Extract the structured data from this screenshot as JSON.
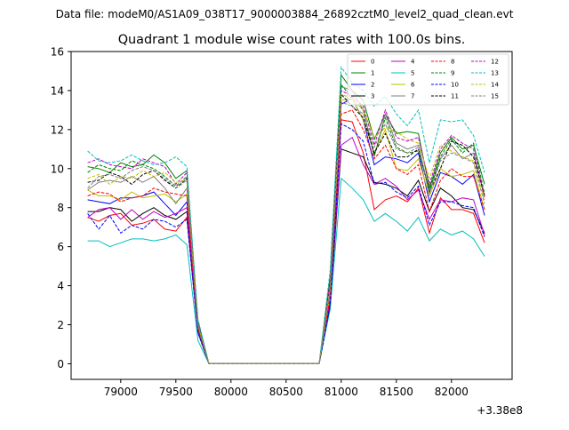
{
  "figure": {
    "suptitle": "Data file: modeM0/AS1A09_038T17_9000003884_26892cztM0_level2_quad_clean.evt"
  },
  "chart_data": {
    "type": "line",
    "title": "Quadrant 1 module wise count rates with 100.0s bins.",
    "xlabel": "",
    "ylabel": "",
    "x_offset_label": "+3.38e8",
    "xlim": [
      78550,
      82550
    ],
    "ylim": [
      -0.8,
      16
    ],
    "xticks": [
      79000,
      79500,
      80000,
      80500,
      81000,
      81500,
      82000
    ],
    "yticks": [
      0,
      2,
      4,
      6,
      8,
      10,
      12,
      14,
      16
    ],
    "grid": false,
    "legend_position": "top-right",
    "x": [
      78700,
      78800,
      78900,
      79000,
      79100,
      79200,
      79300,
      79400,
      79500,
      79600,
      79700,
      79800,
      79900,
      80000,
      80100,
      80200,
      80300,
      80400,
      80500,
      80600,
      80700,
      80800,
      80900,
      81000,
      81100,
      81200,
      81300,
      81400,
      81500,
      81600,
      81700,
      81800,
      81900,
      82000,
      82100,
      82200,
      82300
    ],
    "series": [
      {
        "name": "0",
        "color": "#ff0000",
        "dashed": false,
        "values": [
          7.5,
          7.3,
          7.6,
          7.7,
          7.1,
          7.2,
          7.4,
          6.9,
          6.8,
          7.5,
          1.6,
          0,
          0,
          0,
          0,
          0,
          0,
          0,
          0,
          0,
          0,
          0,
          3.2,
          12.5,
          12.4,
          10.8,
          7.9,
          8.4,
          8.6,
          8.3,
          9.0,
          6.7,
          8.5,
          7.9,
          7.9,
          7.7,
          6.2
        ]
      },
      {
        "name": "1",
        "color": "#008000",
        "dashed": false,
        "values": [
          10.1,
          10.0,
          9.8,
          10.3,
          10.1,
          10.2,
          10.7,
          10.3,
          9.5,
          9.9,
          2.2,
          0,
          0,
          0,
          0,
          0,
          0,
          0,
          0,
          0,
          0,
          0,
          4.5,
          14.8,
          14.0,
          13.5,
          11.5,
          12.8,
          11.8,
          11.9,
          11.8,
          9.0,
          10.8,
          11.6,
          11.0,
          11.2,
          9.2
        ]
      },
      {
        "name": "2",
        "color": "#0000ff",
        "dashed": false,
        "values": [
          8.4,
          8.3,
          8.2,
          8.5,
          8.5,
          8.6,
          8.8,
          8.2,
          7.6,
          8.3,
          1.9,
          0,
          0,
          0,
          0,
          0,
          0,
          0,
          0,
          0,
          0,
          0,
          3.8,
          13.3,
          13.6,
          12.5,
          10.2,
          10.6,
          10.5,
          10.3,
          10.8,
          8.3,
          9.8,
          9.6,
          9.2,
          9.7,
          7.6
        ]
      },
      {
        "name": "3",
        "color": "#000000",
        "dashed": false,
        "values": [
          7.8,
          7.8,
          8.0,
          7.9,
          7.3,
          7.7,
          8.0,
          7.6,
          7.4,
          7.8,
          1.7,
          0,
          0,
          0,
          0,
          0,
          0,
          0,
          0,
          0,
          0,
          0,
          3.0,
          11.0,
          10.8,
          10.6,
          9.3,
          9.2,
          9.0,
          8.6,
          9.4,
          7.8,
          9.0,
          8.6,
          8.0,
          7.9,
          6.7
        ]
      },
      {
        "name": "4",
        "color": "#c000c0",
        "dashed": false,
        "values": [
          7.5,
          7.9,
          8.0,
          7.4,
          7.9,
          7.4,
          7.8,
          7.5,
          7.7,
          8.0,
          1.8,
          0,
          0,
          0,
          0,
          0,
          0,
          0,
          0,
          0,
          0,
          0,
          3.3,
          11.2,
          11.6,
          10.2,
          9.2,
          9.5,
          9.1,
          8.4,
          8.9,
          7.4,
          8.4,
          8.3,
          8.5,
          8.4,
          6.6
        ]
      },
      {
        "name": "5",
        "color": "#00bfbf",
        "dashed": false,
        "values": [
          6.3,
          6.3,
          6.0,
          6.2,
          6.4,
          6.4,
          6.3,
          6.4,
          6.6,
          6.1,
          1.2,
          0,
          0,
          0,
          0,
          0,
          0,
          0,
          0,
          0,
          0,
          0,
          2.8,
          9.5,
          9.0,
          8.4,
          7.3,
          7.7,
          7.3,
          6.8,
          7.5,
          6.3,
          6.9,
          6.6,
          6.8,
          6.4,
          5.5
        ]
      },
      {
        "name": "6",
        "color": "#bfbf00",
        "dashed": false,
        "values": [
          8.9,
          8.6,
          8.6,
          8.4,
          8.8,
          8.5,
          8.6,
          8.7,
          8.3,
          8.7,
          1.9,
          0,
          0,
          0,
          0,
          0,
          0,
          0,
          0,
          0,
          0,
          0,
          3.6,
          13.5,
          13.6,
          12.5,
          10.8,
          12.0,
          10.0,
          9.9,
          10.5,
          8.6,
          10.0,
          9.6,
          9.7,
          9.9,
          7.9
        ]
      },
      {
        "name": "7",
        "color": "#808080",
        "dashed": false,
        "values": [
          8.9,
          9.3,
          9.4,
          9.3,
          9.6,
          9.3,
          9.6,
          9.0,
          8.2,
          9.0,
          1.8,
          0,
          0,
          0,
          0,
          0,
          0,
          0,
          0,
          0,
          0,
          0,
          4.0,
          14.2,
          14.0,
          13.0,
          10.6,
          12.8,
          11.3,
          11.0,
          11.2,
          8.8,
          10.5,
          11.2,
          10.5,
          10.8,
          8.6
        ]
      },
      {
        "name": "8",
        "color": "#ff0000",
        "dashed": true,
        "values": [
          8.6,
          8.8,
          8.7,
          8.3,
          8.5,
          8.6,
          9.0,
          8.8,
          8.7,
          8.6,
          1.8,
          0,
          0,
          0,
          0,
          0,
          0,
          0,
          0,
          0,
          0,
          0,
          3.5,
          12.8,
          13.0,
          12.0,
          10.5,
          11.2,
          10.0,
          9.7,
          10.2,
          7.8,
          9.4,
          10.0,
          9.6,
          9.6,
          7.9
        ]
      },
      {
        "name": "9",
        "color": "#008000",
        "dashed": true,
        "values": [
          9.8,
          10.2,
          10.0,
          9.9,
          10.4,
          10.2,
          10.0,
          9.6,
          9.1,
          9.6,
          2.0,
          0,
          0,
          0,
          0,
          0,
          0,
          0,
          0,
          0,
          0,
          0,
          4.2,
          14.3,
          13.6,
          13.0,
          10.7,
          12.6,
          11.1,
          10.8,
          10.9,
          8.9,
          10.6,
          11.5,
          10.8,
          11.3,
          8.7
        ]
      },
      {
        "name": "10",
        "color": "#0000ff",
        "dashed": true,
        "values": [
          7.7,
          6.9,
          7.6,
          6.7,
          7.1,
          6.9,
          7.4,
          7.3,
          7.0,
          7.4,
          1.6,
          0,
          0,
          0,
          0,
          0,
          0,
          0,
          0,
          0,
          0,
          0,
          3.0,
          12.3,
          12.0,
          11.4,
          9.2,
          9.3,
          8.8,
          8.5,
          9.1,
          7.1,
          8.3,
          8.3,
          8.1,
          8.0,
          6.5
        ]
      },
      {
        "name": "11",
        "color": "#000000",
        "dashed": true,
        "values": [
          9.3,
          9.4,
          9.8,
          9.6,
          9.2,
          9.7,
          9.9,
          9.4,
          9.0,
          9.5,
          2.0,
          0,
          0,
          0,
          0,
          0,
          0,
          0,
          0,
          0,
          0,
          0,
          4.1,
          13.8,
          13.2,
          12.6,
          10.8,
          11.8,
          10.6,
          10.6,
          11.0,
          8.8,
          10.0,
          11.4,
          11.2,
          10.6,
          8.6
        ]
      },
      {
        "name": "12",
        "color": "#c000c0",
        "dashed": true,
        "values": [
          10.3,
          10.5,
          10.2,
          10.1,
          10.0,
          10.5,
          10.3,
          10.1,
          9.2,
          9.8,
          2.1,
          0,
          0,
          0,
          0,
          0,
          0,
          0,
          0,
          0,
          0,
          0,
          4.3,
          14.0,
          13.7,
          13.2,
          11.2,
          13.0,
          11.6,
          11.4,
          11.6,
          9.2,
          11.0,
          11.7,
          11.3,
          11.0,
          8.5
        ]
      },
      {
        "name": "13",
        "color": "#00bfbf",
        "dashed": true,
        "values": [
          10.9,
          10.4,
          10.3,
          10.4,
          10.7,
          10.4,
          10.2,
          10.3,
          10.6,
          10.1,
          2.3,
          0,
          0,
          0,
          0,
          0,
          0,
          0,
          0,
          0,
          0,
          0,
          4.8,
          15.2,
          14.4,
          14.0,
          13.2,
          13.7,
          12.8,
          12.2,
          13.0,
          10.3,
          12.5,
          12.4,
          12.5,
          11.7,
          9.8
        ]
      },
      {
        "name": "14",
        "color": "#bfbf00",
        "dashed": true,
        "values": [
          9.5,
          9.7,
          9.2,
          9.6,
          9.5,
          9.9,
          9.6,
          9.8,
          9.3,
          9.4,
          2.0,
          0,
          0,
          0,
          0,
          0,
          0,
          0,
          0,
          0,
          0,
          0,
          4.0,
          13.8,
          13.6,
          13.0,
          11.6,
          12.1,
          11.9,
          11.5,
          11.3,
          9.5,
          11.2,
          10.9,
          10.6,
          10.4,
          8.4
        ]
      },
      {
        "name": "15",
        "color": "#808080",
        "dashed": true,
        "values": [
          9.0,
          9.6,
          9.7,
          9.5,
          9.9,
          10.1,
          9.9,
          9.5,
          9.0,
          9.4,
          2.0,
          0,
          0,
          0,
          0,
          0,
          0,
          0,
          0,
          0,
          0,
          0,
          3.9,
          13.4,
          13.2,
          12.8,
          11.1,
          12.3,
          11.0,
          10.8,
          11.1,
          8.7,
          10.4,
          10.8,
          10.6,
          10.3,
          8.2
        ]
      }
    ]
  }
}
